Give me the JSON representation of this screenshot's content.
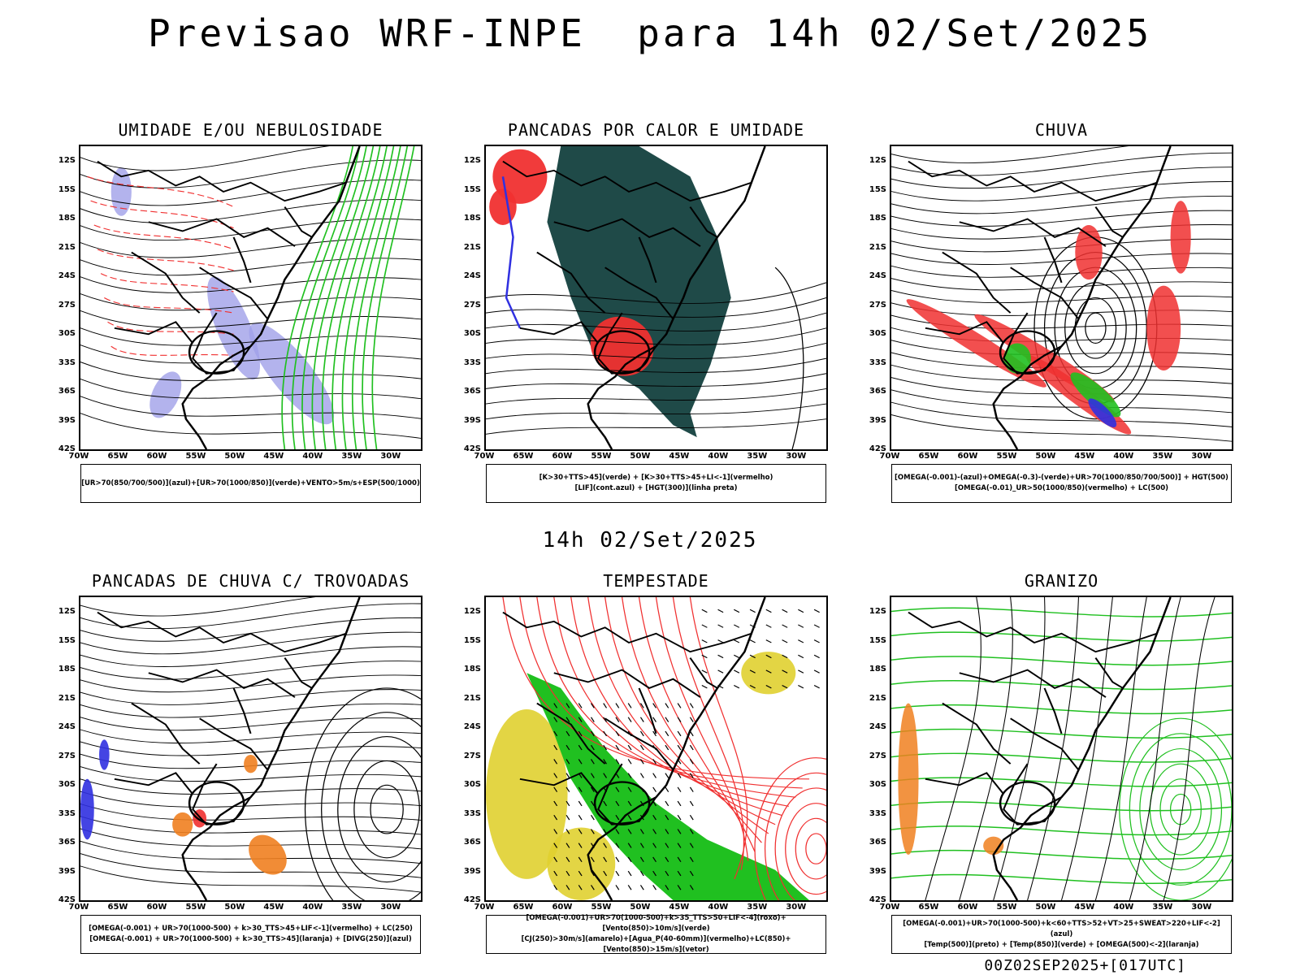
{
  "title": "Previsao WRF-INPE  para 14h 02/Set/2025",
  "mid_title": "14h 02/Set/2025",
  "footer": "00Z02SEP2025+[017UTC]",
  "lat_labels": [
    "12S",
    "15S",
    "18S",
    "21S",
    "24S",
    "27S",
    "30S",
    "33S",
    "36S",
    "39S",
    "42S"
  ],
  "lon_labels": [
    "70W",
    "65W",
    "60W",
    "55W",
    "50W",
    "45W",
    "40W",
    "35W",
    "30W"
  ],
  "colors": {
    "blue": "#3030e0",
    "green": "#20c020",
    "red": "#f03030",
    "darkgreen": "#1f4a48",
    "yellow": "#e0d030",
    "orange": "#f08020",
    "purple": "#a0a0e8"
  },
  "panels": [
    {
      "title": "UMIDADE E/OU NEBULOSIDADE",
      "legend": [
        "[UR>70(850/700/500)](azul)+[UR>70(1000/850)](verde)+VENTO>5m/s+ESP(500/1000)"
      ]
    },
    {
      "title": "PANCADAS POR CALOR E UMIDADE",
      "legend": [
        "[K>30+TTS>45](verde) + [K>30+TTS>45+LI<-1](vermelho)",
        "[LIF](cont.azul) + [HGT(300)](linha preta)"
      ]
    },
    {
      "title": "CHUVA",
      "legend": [
        "[OMEGA(-0.001)-(azul)+OMEGA(-0.3)-(verde)+UR>70(1000/850/700/500)] + HGT(500)",
        "[OMEGA(-0.01)_UR>50(1000/850)(vermelho) + LC(500)"
      ]
    },
    {
      "title": "PANCADAS DE CHUVA C/ TROVOADAS",
      "legend": [
        "[OMEGA(-0.001) + UR>70(1000-500) + k>30_TTS>45+LIF<-1](vermelho) + LC(250)",
        "[OMEGA(-0.001) + UR>70(1000-500) + k>30_TTS>45](laranja) + [DIVG(250)](azul)"
      ]
    },
    {
      "title": "TEMPESTADE",
      "legend": [
        "[OMEGA(-0.001)+UR>70(1000-500)+k>35_TTS>50+LIF<-4](roxo)+[Vento(850)>10m/s](verde)",
        "[CJ(250)>30m/s](amarelo)+[Agua_P(40-60mm)](vermelho)+LC(850)+[Vento(850)>15m/s](vetor)"
      ]
    },
    {
      "title": "GRANIZO",
      "legend": [
        "[OMEGA(-0.001)+UR>70(1000-500)+k<60+TTS>52+VT>25+SWEAT>220+LIF<-2](azul)",
        "[Temp(500)](preto) + [Temp(850)](verde) + [OMEGA(500)<-2](laranja)"
      ]
    }
  ]
}
